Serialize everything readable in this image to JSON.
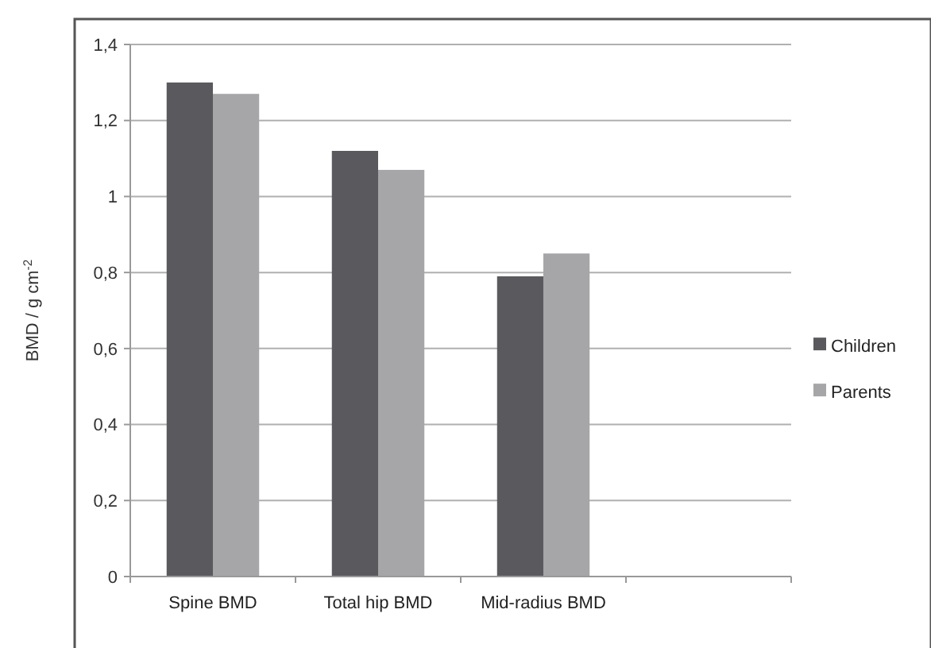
{
  "chart_data": {
    "type": "bar",
    "ylabel": "BMD / g cm$^{-2}$",
    "categories": [
      "Spine BMD",
      "Total hip BMD",
      "Mid-radius BMD",
      null
    ],
    "series": [
      {
        "name": "Children",
        "color": "#5a5a5e",
        "values": [
          1.3,
          1.12,
          0.79,
          null
        ]
      },
      {
        "name": "Parents",
        "color": "#a6a6a8",
        "values": [
          1.27,
          1.07,
          0.85,
          null
        ]
      }
    ],
    "ylim": [
      0,
      1.4
    ],
    "yticks": [
      {
        "value": 0,
        "label": "0"
      },
      {
        "value": 0.2,
        "label": "0,2"
      },
      {
        "value": 0.4,
        "label": "0,4"
      },
      {
        "value": 0.6,
        "label": "0,6"
      },
      {
        "value": 0.8,
        "label": "0,8"
      },
      {
        "value": 1,
        "label": "1"
      },
      {
        "value": 1.2,
        "label": "1,2"
      },
      {
        "value": 1.4,
        "label": "1,4"
      }
    ],
    "grid": "y",
    "legend": "right"
  }
}
